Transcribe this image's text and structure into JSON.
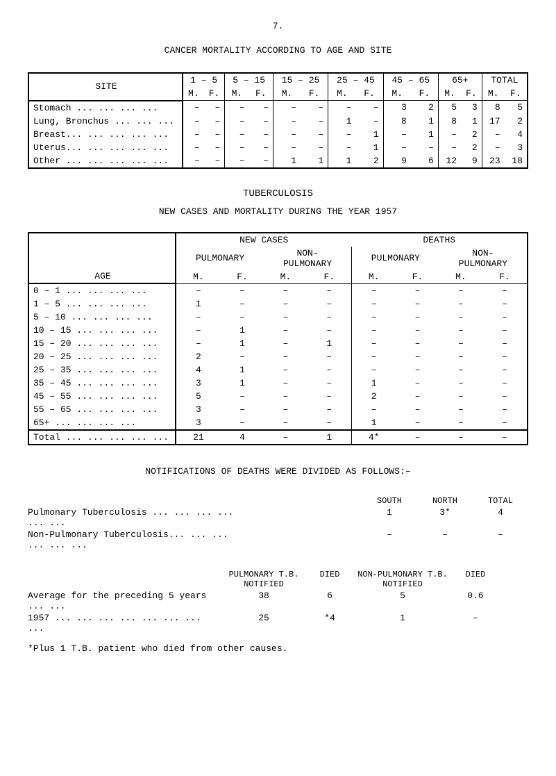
{
  "page_number": "7.",
  "table1": {
    "title": "CANCER MORTALITY ACCORDING TO AGE AND SITE",
    "header": {
      "site": "SITE",
      "cols": [
        "1 – 5",
        "5 – 15",
        "15 – 25",
        "25 – 45",
        "45 – 65",
        "65+",
        "TOTAL"
      ],
      "sub": [
        "M.",
        "F.",
        "M.",
        "F.",
        "M.",
        "F.",
        "M.",
        "F.",
        "M.",
        "F.",
        "M.",
        "F.",
        "M.",
        "F."
      ]
    },
    "rows": [
      {
        "site": "Stomach   ... ... ... ...",
        "vals": [
          "–",
          "–",
          "–",
          "–",
          "–",
          "–",
          "–",
          "–",
          "3",
          "2",
          "5",
          "3",
          "8",
          "5"
        ]
      },
      {
        "site": "Lung, Bronchus  ... ... ...",
        "vals": [
          "–",
          "–",
          "–",
          "–",
          "–",
          "–",
          "1",
          "–",
          "8",
          "1",
          "8",
          "1",
          "17",
          "2"
        ]
      },
      {
        "site": "Breast... ... ... ... ...",
        "vals": [
          "–",
          "–",
          "–",
          "–",
          "–",
          "–",
          "–",
          "1",
          "–",
          "1",
          "–",
          "2",
          "–",
          "4"
        ]
      },
      {
        "site": "Uterus... ... ... ... ...",
        "vals": [
          "–",
          "–",
          "–",
          "–",
          "–",
          "–",
          "–",
          "1",
          "–",
          "–",
          "–",
          "2",
          "–",
          "3"
        ]
      },
      {
        "site": "Other ... ... ... ... ...",
        "vals": [
          "–",
          "–",
          "–",
          "–",
          "1",
          "1",
          "1",
          "2",
          "9",
          "6",
          "12",
          "9",
          "23",
          "18"
        ]
      }
    ]
  },
  "table2": {
    "heading": "TUBERCULOSIS",
    "subheading": "NEW CASES AND MORTALITY DURING THE YEAR 1957",
    "labels": {
      "age": "AGE",
      "newcases": "NEW CASES",
      "deaths": "DEATHS",
      "pulm": "PULMONARY",
      "nonpulm": "NON-\nPULMONARY",
      "pulm2": "PULMONARY",
      "nonpulm2": "NON-\nPULMONARY",
      "m": "M.",
      "f": "F."
    },
    "rows": [
      {
        "age": "0 –  1   ... ... ... ...",
        "v": [
          "–",
          "–",
          "–",
          "–",
          "–",
          "–",
          "–",
          "–"
        ]
      },
      {
        "age": "1 –  5   ... ... ... ...",
        "v": [
          "1",
          "–",
          "–",
          "–",
          "–",
          "–",
          "–",
          "–"
        ]
      },
      {
        "age": "5 – 10   ... ... ... ...",
        "v": [
          "–",
          "–",
          "–",
          "–",
          "–",
          "–",
          "–",
          "–"
        ]
      },
      {
        "age": "10 – 15   ... ... ... ...",
        "v": [
          "–",
          "1",
          "–",
          "–",
          "–",
          "–",
          "–",
          "–"
        ]
      },
      {
        "age": "15 – 20   ... ... ... ...",
        "v": [
          "–",
          "1",
          "–",
          "1",
          "–",
          "–",
          "–",
          "–"
        ]
      },
      {
        "age": "20 – 25   ... ... ... ...",
        "v": [
          "2",
          "–",
          "–",
          "–",
          "–",
          "–",
          "–",
          "–"
        ]
      },
      {
        "age": "25 – 35   ... ... ... ...",
        "v": [
          "4",
          "1",
          "–",
          "–",
          "–",
          "–",
          "–",
          "–"
        ]
      },
      {
        "age": "35 – 45   ... ... ... ...",
        "v": [
          "3",
          "1",
          "–",
          "–",
          "1",
          "–",
          "–",
          "–"
        ]
      },
      {
        "age": "45 – 55   ... ... ... ...",
        "v": [
          "5",
          "–",
          "–",
          "–",
          "2",
          "–",
          "–",
          "–"
        ]
      },
      {
        "age": "55 – 65   ... ... ... ...",
        "v": [
          "3",
          "–",
          "–",
          "–",
          "–",
          "–",
          "–",
          "–"
        ]
      },
      {
        "age": "65+      ... ... ... ...",
        "v": [
          "3",
          "–",
          "–",
          "–",
          "1",
          "–",
          "–",
          "–"
        ]
      }
    ],
    "total": {
      "age": "Total ... ... ... ... ...",
      "v": [
        "21",
        "4",
        "–",
        "1",
        "4*",
        "–",
        "–",
        "–"
      ]
    }
  },
  "notifications": {
    "title": "NOTIFICATIONS OF DEATHS WERE DIVIDED AS FOLLOWS:–",
    "cols1": [
      "SOUTH",
      "NORTH",
      "TOTAL"
    ],
    "rows1": [
      {
        "label": "Pulmonary Tuberculosis    ... ... ... ... ... ...",
        "v": [
          "1",
          "3*",
          "4"
        ]
      },
      {
        "label": "Non-Pulmonary Tuberculosis... ... ... ... ... ...",
        "v": [
          "–",
          "–",
          "–"
        ]
      }
    ],
    "cols2": [
      "PULMONARY T.B.\nNOTIFIED",
      "DIED",
      "NON-PULMONARY T.B.\nNOTIFIED",
      "DIED"
    ],
    "rows2": [
      {
        "label": "Average for the preceding 5 years   ... ...",
        "v": [
          "38",
          "6",
          "5",
          "0.6"
        ]
      },
      {
        "label": "1957  ... ... ... ... ... ... ... ...",
        "v": [
          "25",
          "*4",
          "1",
          "–"
        ]
      }
    ],
    "footnote": "*Plus 1 T.B. patient who died from other causes."
  }
}
